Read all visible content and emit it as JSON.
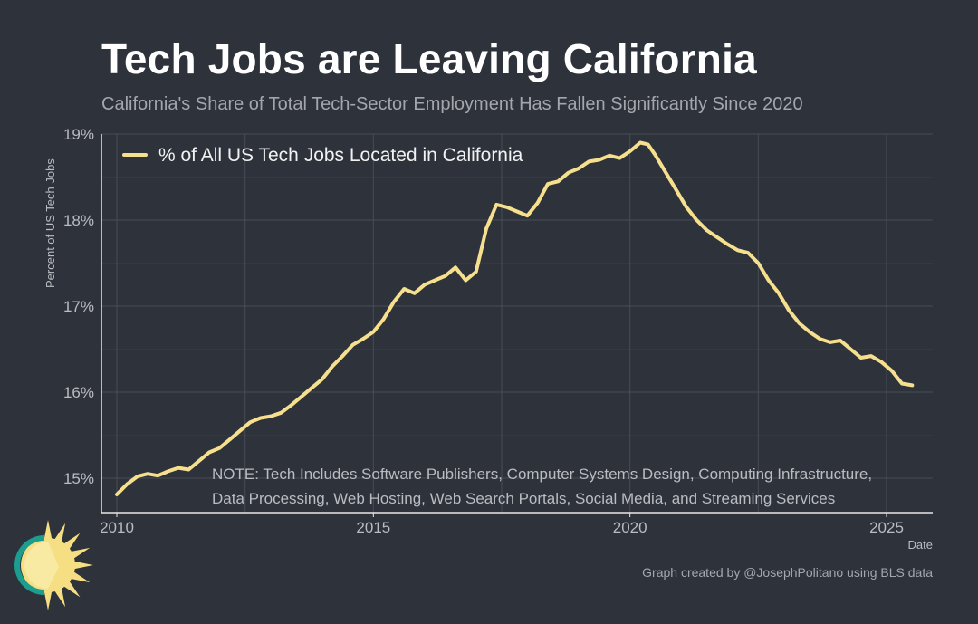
{
  "header": {
    "title": "Tech Jobs are Leaving California",
    "subtitle": "California's Share of Total Tech-Sector Employment Has Fallen Significantly Since 2020"
  },
  "note": {
    "line1": "NOTE: Tech Includes Software Publishers, Computer Systems Design, Computing Infrastructure,",
    "line2": "Data Processing, Web Hosting, Web Search Portals, Social Media, and Streaming Services"
  },
  "credit": "Graph created by @JosephPolitano using BLS data",
  "logo": {
    "icon": "sun-logo-icon",
    "colors": [
      "#f6df82",
      "#1b9e8f"
    ]
  },
  "colors": {
    "background": "#2e323b",
    "line": "#f6e08d",
    "grid": "#474c56",
    "axis": "#e8e8e8"
  },
  "chart_data": {
    "type": "line",
    "title": "Tech Jobs are Leaving California",
    "subtitle": "California's Share of Total Tech-Sector Employment Has Fallen Significantly Since 2020",
    "xlabel": "Date",
    "ylabel": "Percent of US Tech Jobs",
    "xlim": [
      2009.7,
      2025.9
    ],
    "ylim": [
      14.6,
      19.0
    ],
    "x_ticks": [
      2010,
      2015,
      2020,
      2025
    ],
    "x_tick_labels": [
      "2010",
      "2015",
      "2020",
      "2025"
    ],
    "y_ticks": [
      15,
      16,
      17,
      18,
      19
    ],
    "y_tick_labels": [
      "15%",
      "16%",
      "17%",
      "18%",
      "19%"
    ],
    "grid": true,
    "legend_position": "top-left",
    "series": [
      {
        "name": "% of All US Tech Jobs Located in California",
        "color": "#f6e08d",
        "x": [
          2010.0,
          2010.2,
          2010.4,
          2010.6,
          2010.8,
          2011.0,
          2011.2,
          2011.4,
          2011.6,
          2011.8,
          2012.0,
          2012.2,
          2012.4,
          2012.6,
          2012.8,
          2013.0,
          2013.2,
          2013.4,
          2013.6,
          2013.8,
          2014.0,
          2014.2,
          2014.4,
          2014.6,
          2014.8,
          2015.0,
          2015.2,
          2015.4,
          2015.6,
          2015.8,
          2016.0,
          2016.2,
          2016.4,
          2016.6,
          2016.8,
          2017.0,
          2017.2,
          2017.4,
          2017.6,
          2017.8,
          2018.0,
          2018.2,
          2018.4,
          2018.6,
          2018.8,
          2019.0,
          2019.2,
          2019.4,
          2019.6,
          2019.8,
          2020.0,
          2020.2,
          2020.35,
          2020.5,
          2020.7,
          2020.9,
          2021.1,
          2021.3,
          2021.5,
          2021.7,
          2021.9,
          2022.1,
          2022.3,
          2022.5,
          2022.7,
          2022.9,
          2023.1,
          2023.3,
          2023.5,
          2023.7,
          2023.9,
          2024.1,
          2024.3,
          2024.5,
          2024.7,
          2024.9,
          2025.1,
          2025.3,
          2025.5
        ],
        "values": [
          14.81,
          14.93,
          15.02,
          15.05,
          15.03,
          15.08,
          15.12,
          15.1,
          15.2,
          15.3,
          15.35,
          15.45,
          15.55,
          15.65,
          15.7,
          15.72,
          15.76,
          15.85,
          15.95,
          16.05,
          16.15,
          16.3,
          16.42,
          16.55,
          16.62,
          16.7,
          16.85,
          17.05,
          17.2,
          17.15,
          17.25,
          17.3,
          17.35,
          17.45,
          17.3,
          17.4,
          17.9,
          18.18,
          18.15,
          18.1,
          18.05,
          18.2,
          18.42,
          18.45,
          18.55,
          18.6,
          18.68,
          18.7,
          18.75,
          18.72,
          18.8,
          18.9,
          18.88,
          18.75,
          18.55,
          18.35,
          18.15,
          18.0,
          17.88,
          17.8,
          17.72,
          17.65,
          17.62,
          17.5,
          17.3,
          17.15,
          16.95,
          16.8,
          16.7,
          16.62,
          16.58,
          16.6,
          16.5,
          16.4,
          16.42,
          16.35,
          16.25,
          16.1,
          16.08
        ]
      }
    ]
  }
}
